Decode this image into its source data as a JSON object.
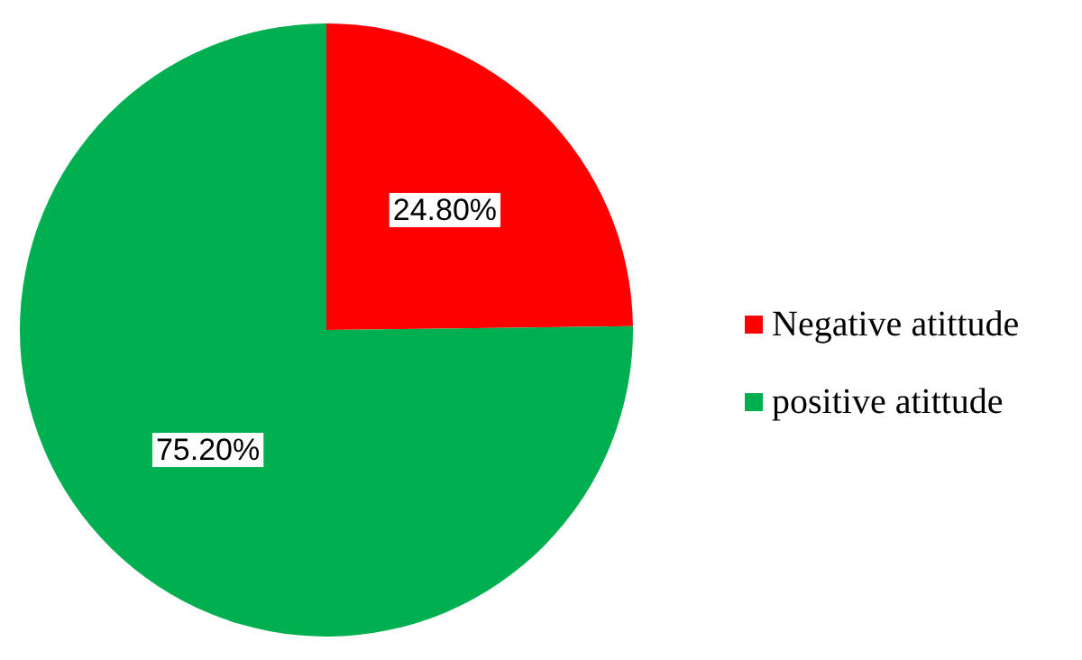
{
  "chart_data": {
    "type": "pie",
    "categories": [
      "Negative atittude",
      "positive atittude"
    ],
    "values": [
      24.8,
      75.2
    ],
    "colors": [
      "#ff0000",
      "#00b050"
    ],
    "value_labels": [
      "24.80%",
      "75.20%"
    ],
    "legend": "right"
  }
}
